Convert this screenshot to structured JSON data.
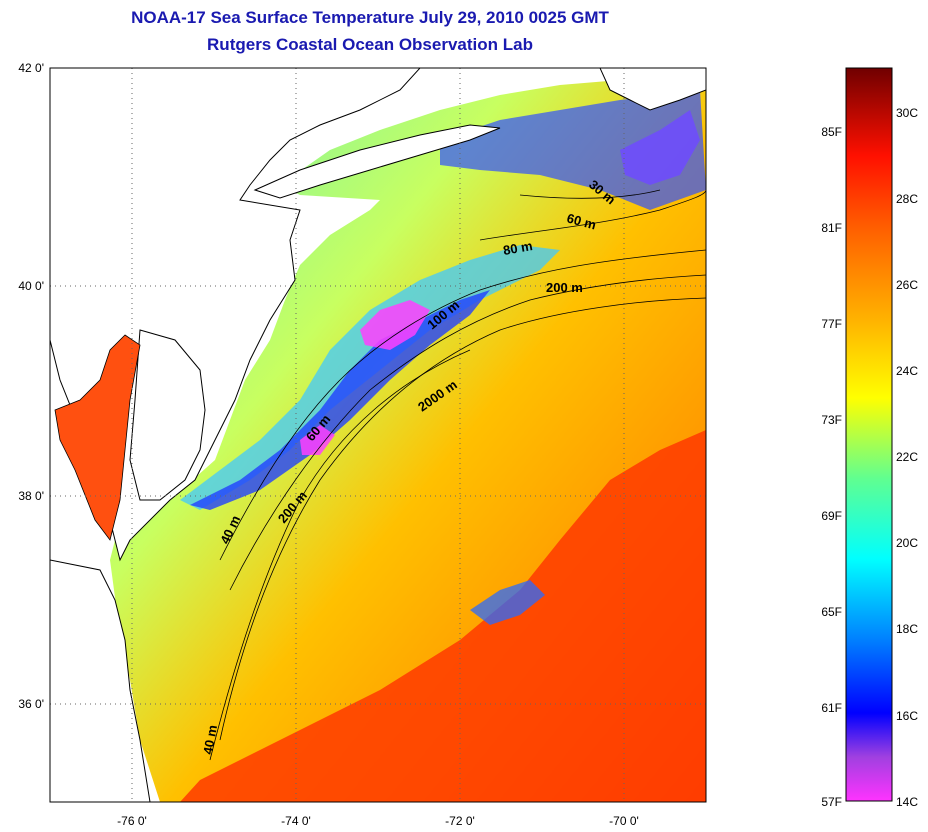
{
  "title": {
    "line1": "NOAA-17 Sea Surface Temperature July 29, 2010 0025 GMT",
    "line2": "Rutgers Coastal Ocean Observation Lab"
  },
  "map": {
    "lat_labels": [
      "42 0'",
      "40 0'",
      "38 0'",
      "36 0'"
    ],
    "lon_labels": [
      "-76 0'",
      "-74 0'",
      "-72 0'",
      "-70 0'"
    ],
    "isobath_labels": [
      "30 m",
      "60 m",
      "80 m",
      "200 m",
      "100 m",
      "2000 m",
      "60 m",
      "200 m",
      "40 m",
      "40 m"
    ]
  },
  "colorbar": {
    "fahrenheit_labels": [
      "85F",
      "81F",
      "77F",
      "73F",
      "69F",
      "65F",
      "61F",
      "57F"
    ],
    "celsius_labels": [
      "30C",
      "28C",
      "26C",
      "24C",
      "22C",
      "20C",
      "18C",
      "16C",
      "14C"
    ],
    "colors": {
      "dark_red": "#7a0000",
      "red": "#ff1a00",
      "orange": "#ff9a00",
      "yellow": "#ffff00",
      "light_green": "#a8ff50",
      "cyan": "#00ffff",
      "blue": "#0030ff",
      "deep_blue": "#0000c8",
      "purple": "#8a2be2",
      "magenta": "#ff00ff"
    }
  }
}
